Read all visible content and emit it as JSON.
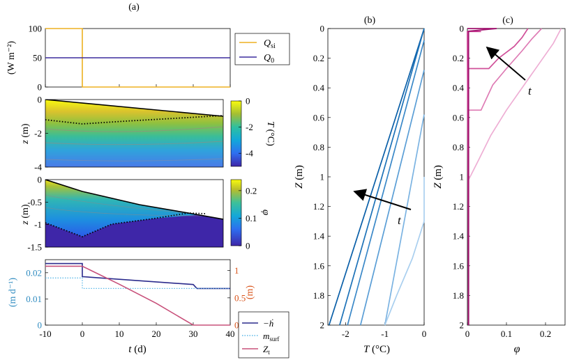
{
  "chart_data": [
    {
      "panel": "(a)",
      "subplot": "heat-flux",
      "type": "line",
      "ylabel": "(W m⁻²)",
      "xlim": [
        -10,
        40
      ],
      "ylim": [
        0,
        100
      ],
      "yticks": [
        "0",
        "50",
        "100"
      ],
      "series": [
        {
          "name": "Q_si",
          "color": "#EDB120",
          "x": [
            -10,
            0,
            0,
            40
          ],
          "y": [
            100,
            100,
            0,
            0
          ]
        },
        {
          "name": "Q_0",
          "color": "#3B2C9E",
          "x": [
            -10,
            40
          ],
          "y": [
            50,
            50
          ]
        }
      ],
      "legend": [
        {
          "label": "Q",
          "sub": "si",
          "color": "#EDB120"
        },
        {
          "label": "Q",
          "sub": "0",
          "color": "#3B2C9E"
        }
      ]
    },
    {
      "panel": "(a)",
      "subplot": "temperature-field",
      "type": "heatmap",
      "ylabel": "z (m)",
      "yticks": [
        "0",
        "-2",
        "-4"
      ],
      "ylim": [
        -4,
        0
      ],
      "colorbar": {
        "label": "T (°C)",
        "ticks": [
          "0",
          "-2",
          "-4"
        ],
        "range": [
          -5,
          0
        ]
      },
      "top_surface": {
        "x": [
          -10,
          40
        ],
        "z": [
          0,
          -1.0
        ]
      },
      "interface": {
        "x": [
          -10,
          0,
          40
        ],
        "z": [
          -1.2,
          -1.5,
          -0.9
        ]
      }
    },
    {
      "panel": "(a)",
      "subplot": "porosity-field",
      "type": "heatmap",
      "ylabel": "z (m)",
      "yticks": [
        "0",
        "-0.5",
        "-1",
        "-1.5"
      ],
      "ylim": [
        -1.5,
        0
      ],
      "colorbar": {
        "label": "φ",
        "ticks": [
          "0.2",
          "0.1",
          "0"
        ],
        "range": [
          0,
          0.24
        ]
      },
      "top_surface": {
        "x": [
          -10,
          0,
          30,
          40
        ],
        "z": [
          0,
          -0.25,
          -0.7,
          -0.87
        ]
      },
      "interface": {
        "x": [
          -10,
          0,
          10,
          25,
          30
        ],
        "z": [
          -1.0,
          -1.27,
          -1.05,
          -0.85,
          -0.75
        ]
      }
    },
    {
      "panel": "(a)",
      "subplot": "rates",
      "type": "line",
      "xlabel": "t (d)",
      "xlim": [
        -10,
        40
      ],
      "xticks": [
        "-10",
        "0",
        "10",
        "20",
        "30",
        "40"
      ],
      "ylabel_left": "(m d⁻¹)",
      "ylim_left": [
        0,
        0.025
      ],
      "yticks_left": [
        "0",
        "0.01",
        "0.02"
      ],
      "ylabel_right": "(m)",
      "ylim_right": [
        0,
        1.2
      ],
      "yticks_right": [
        "0",
        "0.5",
        "1"
      ],
      "series": [
        {
          "name": "-h_dot",
          "axis": "left",
          "color": "#2A2A8C",
          "x": [
            -10,
            0,
            0,
            30,
            31,
            40
          ],
          "y": [
            0.0235,
            0.0235,
            0.0185,
            0.0155,
            0.014,
            0.014
          ]
        },
        {
          "name": "m_surf",
          "axis": "left",
          "color": "#5BB8E8",
          "style": "dotted",
          "x": [
            -10,
            0,
            0,
            40
          ],
          "y": [
            0.018,
            0.018,
            0.014,
            0.014
          ]
        },
        {
          "name": "Z_t",
          "axis": "right",
          "color": "#C8507A",
          "x": [
            -10,
            0,
            10,
            20,
            30,
            40
          ],
          "y": [
            1.08,
            1.08,
            0.75,
            0.4,
            0.0,
            0.0
          ]
        }
      ],
      "legend": [
        {
          "label": "−ḣ",
          "color": "#2A2A8C"
        },
        {
          "label": "m",
          "sub": "surf",
          "color": "#5BB8E8"
        },
        {
          "label": "Z",
          "sub": "t",
          "color": "#C8507A"
        }
      ]
    },
    {
      "panel": "(b)",
      "type": "line",
      "title": "(b)",
      "xlabel": "T (°C)",
      "ylabel": "Z (m)",
      "xlim": [
        -2.45,
        0
      ],
      "ylim": [
        0,
        2
      ],
      "xticks": [
        "-2",
        "-1",
        "0"
      ],
      "yticks": [
        "0",
        "0.2",
        "0.4",
        "0.6",
        "0.8",
        "1",
        "1.2",
        "1.4",
        "1.6",
        "1.8",
        "2"
      ],
      "annotation": "t",
      "series": [
        {
          "color": "#0A5FA8",
          "x": [
            0,
            -2.42
          ],
          "y": [
            0,
            2
          ]
        },
        {
          "color": "#1D72B8",
          "x": [
            0,
            -2.15
          ],
          "y": [
            0,
            2
          ]
        },
        {
          "color": "#3A88C8",
          "x": [
            0,
            -1.95
          ],
          "y": [
            0.08,
            2
          ]
        },
        {
          "color": "#5A9ED6",
          "x": [
            0,
            -1.62
          ],
          "y": [
            0.28,
            2
          ]
        },
        {
          "color": "#7BB3E2",
          "x": [
            0,
            -1.0
          ],
          "y": [
            0.58,
            2
          ]
        },
        {
          "color": "#A9CFEF",
          "x": [
            0,
            0,
            -0.3,
            -0.7,
            -1.0
          ],
          "y": [
            1.0,
            1.3,
            1.55,
            1.8,
            2
          ]
        }
      ]
    },
    {
      "panel": "(c)",
      "type": "line",
      "title": "(c)",
      "xlabel": "φ",
      "ylabel": "Z (m)",
      "xlim": [
        0,
        0.25
      ],
      "ylim": [
        0,
        2
      ],
      "xticks": [
        "0",
        "0.1",
        "0.2"
      ],
      "yticks": [
        "0",
        "0.2",
        "0.4",
        "0.6",
        "0.8",
        "1",
        "1.2",
        "1.4",
        "1.6",
        "1.8",
        "2"
      ],
      "annotation": "t",
      "series": [
        {
          "color": "#A0136F",
          "x": [
            0,
            0.075,
            0.003,
            0.003
          ],
          "y": [
            0,
            0,
            0.018,
            2
          ]
        },
        {
          "color": "#C7338C",
          "x": [
            0,
            0.035,
            0.0,
            0.003
          ],
          "y": [
            0.02,
            0.02,
            0.02,
            2
          ]
        },
        {
          "color": "#D05099",
          "x": [
            0.155,
            0.14,
            0.12,
            0.08,
            0.055,
            0.003,
            0.003
          ],
          "y": [
            0,
            0.06,
            0.12,
            0.2,
            0.27,
            0.27,
            2
          ]
        },
        {
          "color": "#DE7BB4",
          "x": [
            0.19,
            0.165,
            0.14,
            0.1,
            0.065,
            0.035,
            0.003,
            0.003
          ],
          "y": [
            0,
            0.07,
            0.15,
            0.27,
            0.38,
            0.55,
            0.55,
            2
          ]
        },
        {
          "color": "#EEAED4",
          "x": [
            0.24,
            0.22,
            0.18,
            0.14,
            0.1,
            0.06,
            0.03,
            0.003,
            0.003
          ],
          "y": [
            0,
            0.1,
            0.25,
            0.4,
            0.55,
            0.72,
            0.88,
            1.02,
            2
          ]
        }
      ]
    }
  ],
  "labels": {
    "panel_a": "(a)",
    "panel_b": "(b)",
    "panel_c": "(c)",
    "annotation_t": "t"
  }
}
